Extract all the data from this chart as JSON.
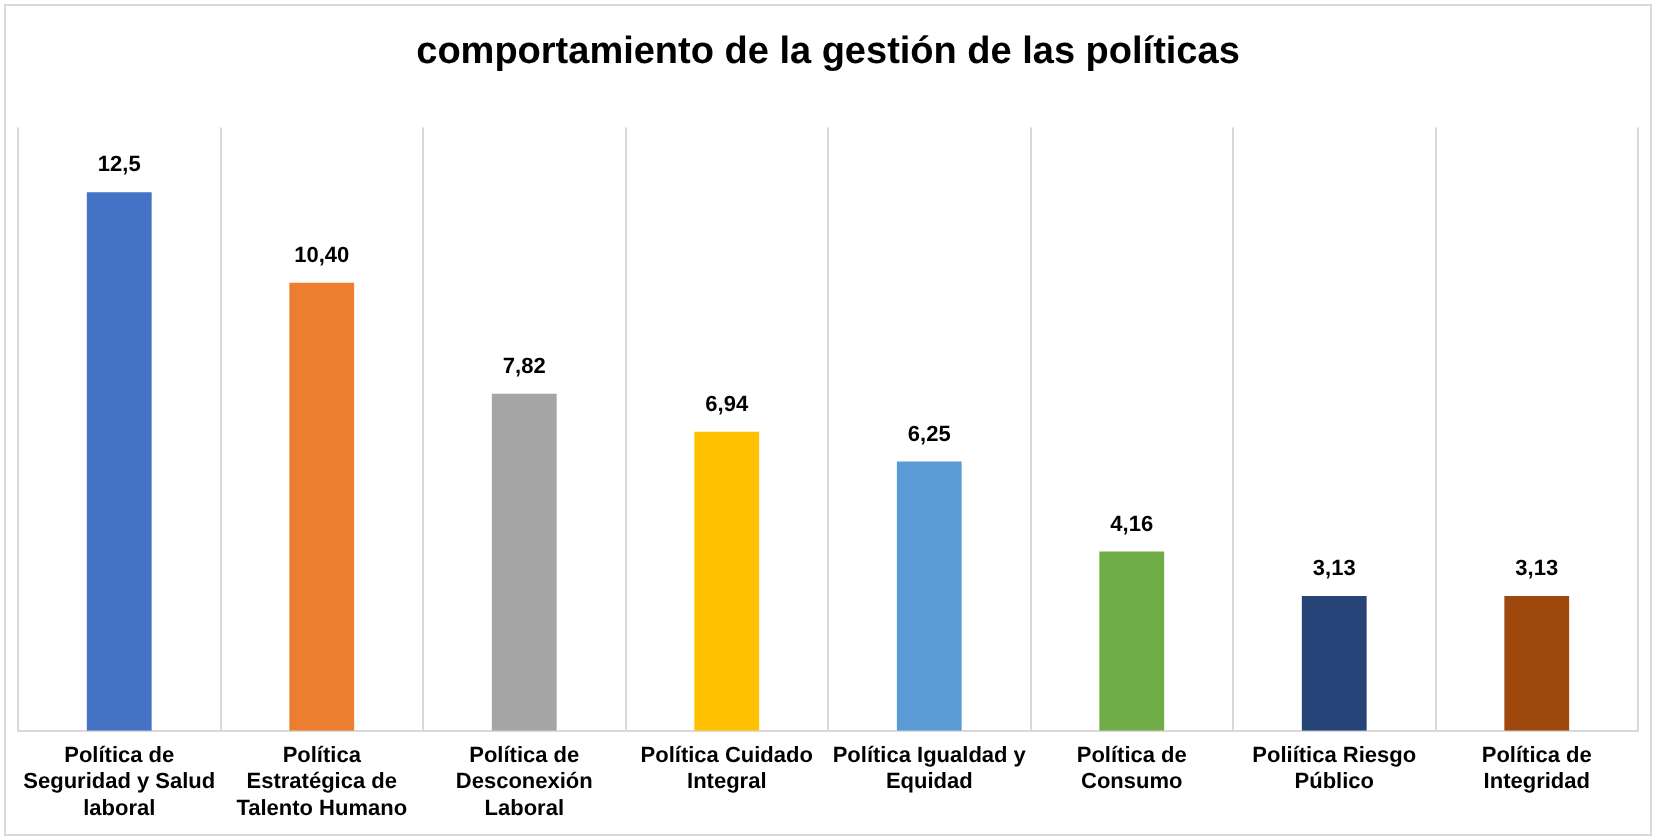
{
  "chart_data": {
    "type": "bar",
    "title": "comportamiento de la gestión de las políticas",
    "categories": [
      "Política de Seguridad y Salud laboral",
      "Política Estratégica de Talento Humano",
      "Política de Desconexión Laboral",
      "Política Cuidado Integral",
      "Política Igualdad y Equidad",
      "Política de Consumo",
      "Poliítica Riesgo Público",
      "Política de Integridad"
    ],
    "values": [
      12.5,
      10.4,
      7.82,
      6.94,
      6.25,
      4.16,
      3.13,
      3.13
    ],
    "value_labels": [
      "12,5",
      "10,40",
      "7,82",
      "6,94",
      "6,25",
      "4,16",
      "3,13",
      "3,13"
    ],
    "colors": [
      "#4472c4",
      "#ed7d31",
      "#a5a5a5",
      "#ffc000",
      "#5b9bd5",
      "#70ad47",
      "#264478",
      "#9e480e"
    ],
    "grid": "x",
    "tick_labels": "x"
  }
}
